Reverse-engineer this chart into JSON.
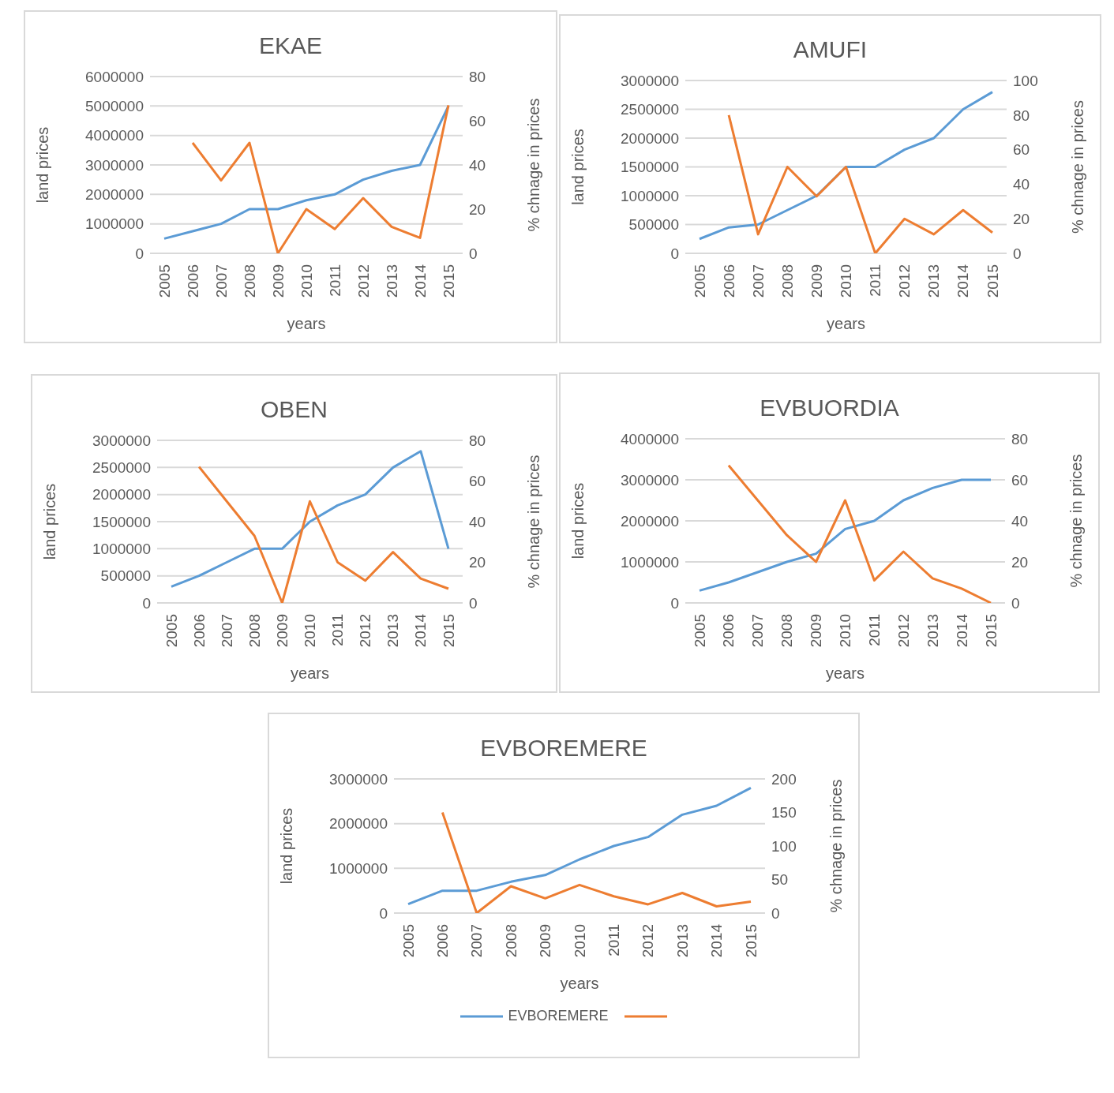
{
  "chart_data": [
    {
      "type": "line",
      "title": "EKAE",
      "xlabel": "years",
      "ylabel": "land prices",
      "y2label": "% chnage in prices",
      "categories": [
        "2005",
        "2006",
        "2007",
        "2008",
        "2009",
        "2010",
        "2011",
        "2012",
        "2013",
        "2014",
        "2015"
      ],
      "series": [
        {
          "color": "#5b9bd5",
          "values": [
            500000,
            750000,
            1000000,
            1500000,
            1500000,
            1800000,
            2000000,
            2500000,
            2800000,
            3000000,
            5000000
          ]
        },
        {
          "color": "#ed7d31",
          "axis": "y2",
          "values": [
            null,
            50,
            33,
            50,
            0,
            20,
            11,
            25,
            12,
            7,
            67
          ]
        }
      ],
      "ylim": [
        0,
        6000000
      ],
      "yticks": [
        0,
        1000000,
        2000000,
        3000000,
        4000000,
        5000000,
        6000000
      ],
      "y2lim": [
        0,
        80
      ],
      "y2ticks": [
        0,
        20,
        40,
        60,
        80
      ],
      "grid": "y",
      "legend": false
    },
    {
      "type": "line",
      "title": "AMUFI",
      "xlabel": "years",
      "ylabel": "land prices",
      "y2label": "% chnage in prices",
      "categories": [
        "2005",
        "2006",
        "2007",
        "2008",
        "2009",
        "2010",
        "2011",
        "2012",
        "2013",
        "2014",
        "2015"
      ],
      "series": [
        {
          "color": "#5b9bd5",
          "values": [
            250000,
            450000,
            500000,
            750000,
            1000000,
            1500000,
            1500000,
            1800000,
            2000000,
            2500000,
            2800000
          ]
        },
        {
          "color": "#ed7d31",
          "axis": "y2",
          "values": [
            null,
            80,
            11,
            50,
            33,
            50,
            0,
            20,
            11,
            25,
            12
          ]
        }
      ],
      "ylim": [
        0,
        3000000
      ],
      "yticks": [
        0,
        500000,
        1000000,
        1500000,
        2000000,
        2500000,
        3000000
      ],
      "y2lim": [
        0,
        100
      ],
      "y2ticks": [
        0,
        20,
        40,
        60,
        80,
        100
      ],
      "grid": "y",
      "legend": false
    },
    {
      "type": "line",
      "title": "OBEN",
      "xlabel": "years",
      "ylabel": "land prices",
      "y2label": "% chnage in prices",
      "categories": [
        "2005",
        "2006",
        "2007",
        "2008",
        "2009",
        "2010",
        "2011",
        "2012",
        "2013",
        "2014",
        "2015"
      ],
      "series": [
        {
          "color": "#5b9bd5",
          "values": [
            300000,
            500000,
            750000,
            1000000,
            1000000,
            1500000,
            1800000,
            2000000,
            2500000,
            2800000,
            1000000
          ]
        },
        {
          "color": "#ed7d31",
          "axis": "y2",
          "values": [
            null,
            67,
            50,
            33,
            0,
            50,
            20,
            11,
            25,
            12,
            7
          ]
        }
      ],
      "ylim": [
        0,
        3000000
      ],
      "yticks": [
        0,
        500000,
        1000000,
        1500000,
        2000000,
        2500000,
        3000000
      ],
      "y2lim": [
        0,
        80
      ],
      "y2ticks": [
        0,
        20,
        40,
        60,
        80
      ],
      "grid": "y",
      "legend": false
    },
    {
      "type": "line",
      "title": "EVBUORDIA",
      "xlabel": "years",
      "ylabel": "land prices",
      "y2label": "% chnage in prices",
      "categories": [
        "2005",
        "2006",
        "2007",
        "2008",
        "2009",
        "2010",
        "2011",
        "2012",
        "2013",
        "2014",
        "2015"
      ],
      "series": [
        {
          "color": "#5b9bd5",
          "values": [
            300000,
            500000,
            750000,
            1000000,
            1200000,
            1800000,
            2000000,
            2500000,
            2800000,
            3000000,
            3000000
          ]
        },
        {
          "color": "#ed7d31",
          "axis": "y2",
          "values": [
            null,
            67,
            50,
            33,
            20,
            50,
            11,
            25,
            12,
            7,
            0
          ]
        }
      ],
      "ylim": [
        0,
        4000000
      ],
      "yticks": [
        0,
        1000000,
        2000000,
        3000000,
        4000000
      ],
      "y2lim": [
        0,
        80
      ],
      "y2ticks": [
        0,
        20,
        40,
        60,
        80
      ],
      "grid": "y",
      "legend": false
    },
    {
      "type": "line",
      "title": "EVBOREMERE",
      "xlabel": "years",
      "ylabel": "land prices",
      "y2label": "% chnage in prices",
      "categories": [
        "2005",
        "2006",
        "2007",
        "2008",
        "2009",
        "2010",
        "2011",
        "2012",
        "2013",
        "2014",
        "2015"
      ],
      "series": [
        {
          "name": "EVBOREMERE",
          "color": "#5b9bd5",
          "values": [
            200000,
            500000,
            500000,
            700000,
            850000,
            1200000,
            1500000,
            1700000,
            2200000,
            2400000,
            2800000
          ]
        },
        {
          "color": "#ed7d31",
          "axis": "y2",
          "values": [
            null,
            150,
            0,
            40,
            22,
            42,
            25,
            13,
            30,
            10,
            17
          ]
        }
      ],
      "ylim": [
        0,
        3000000
      ],
      "yticks": [
        0,
        1000000,
        2000000,
        3000000
      ],
      "y2lim": [
        0,
        200
      ],
      "y2ticks": [
        0,
        50,
        100,
        150,
        200
      ],
      "grid": "y",
      "legend": "bottom"
    }
  ]
}
